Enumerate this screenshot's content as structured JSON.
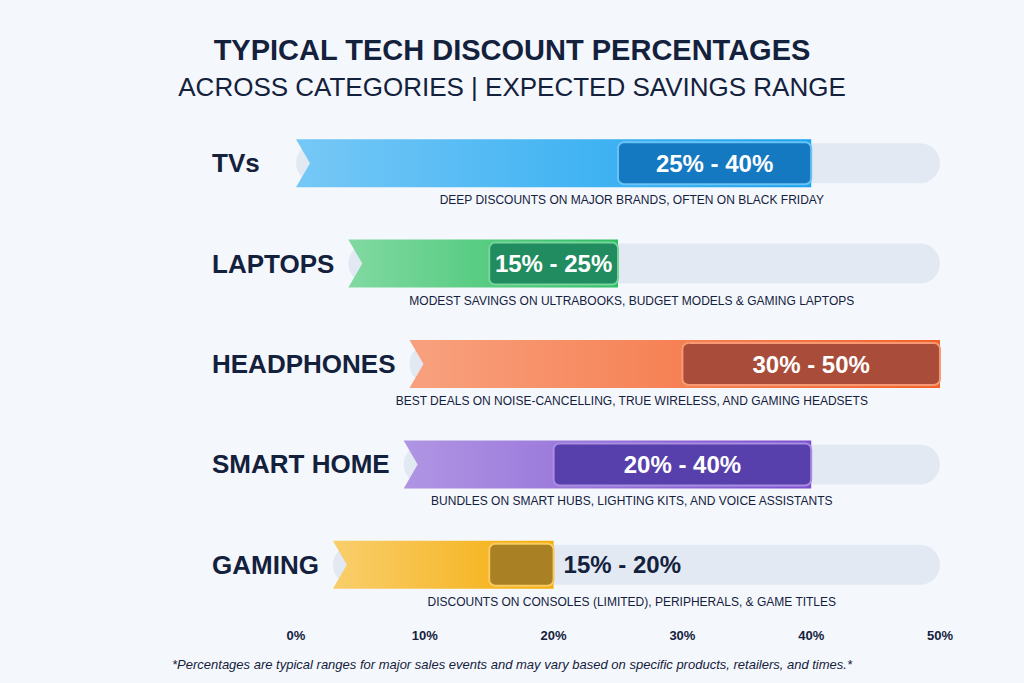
{
  "chart_data": {
    "type": "bar",
    "orientation": "horizontal",
    "title": "TYPICAL TECH DISCOUNT PERCENTAGES",
    "subtitle": "ACROSS CATEGORIES | EXPECTED SAVINGS RANGE",
    "categories": [
      "TVs",
      "LAPTOPS",
      "HEADPHONES",
      "SMART HOME",
      "GAMING"
    ],
    "low": [
      25,
      15,
      30,
      20,
      15
    ],
    "high": [
      40,
      25,
      50,
      40,
      20
    ],
    "value_labels": [
      "25% - 40%",
      "15% - 25%",
      "30% - 50%",
      "20% - 40%",
      "15% - 20%"
    ],
    "annotations": [
      "DEEP DISCOUNTS ON MAJOR BRANDS, OFTEN ON BLACK FRIDAY",
      "MODEST SAVINGS ON ULTRABOOKS, BUDGET MODELS & GAMING LAPTOPS",
      "BEST DEALS ON NOISE-CANCELLING, TRUE WIRELESS, AND GAMING HEADSETS",
      "BUNDLES ON SMART HUBS, LIGHTING KITS, AND VOICE ASSISTANTS",
      "DISCOUNTS ON CONSOLES (LIMITED), PERIPHERALS, & GAME TITLES"
    ],
    "footnote": "*Percentages are typical ranges for major sales events and may vary based on specific products, retailers, and times.*",
    "colors": [
      "#1aa3f0",
      "#2dbf63",
      "#f4622a",
      "#7b4fd0",
      "#f5ad0a"
    ],
    "xlim": [
      0,
      50
    ],
    "xticks": [
      {
        "value": 0,
        "label": "0%"
      },
      {
        "value": 10,
        "label": "10%"
      },
      {
        "value": 20,
        "label": "20%"
      },
      {
        "value": 30,
        "label": "30%"
      },
      {
        "value": 40,
        "label": "40%"
      },
      {
        "value": 50,
        "label": "50%"
      }
    ],
    "data_labels": true,
    "grid": false
  }
}
